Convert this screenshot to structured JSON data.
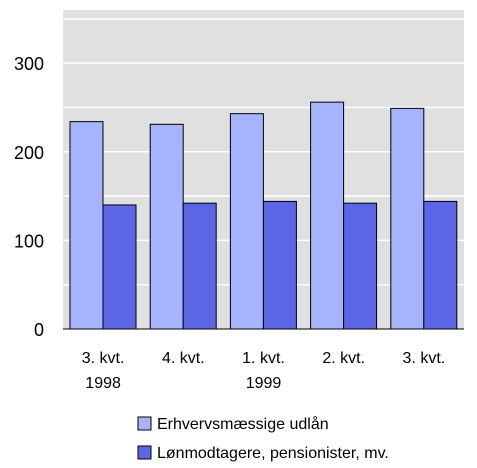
{
  "chart_data": {
    "type": "bar",
    "categories": [
      [
        "3. kvt.",
        "1998"
      ],
      [
        "4. kvt.",
        ""
      ],
      [
        "1. kvt.",
        "1999"
      ],
      [
        "2. kvt.",
        ""
      ],
      [
        "3. kvt.",
        ""
      ]
    ],
    "series": [
      {
        "name": "Erhvervsmæssige udlån",
        "color": "#a6b4ff",
        "values": [
          234,
          231,
          243,
          256,
          249
        ]
      },
      {
        "name": "Lønmodtagere, pensionister, mv.",
        "color": "#5a66e6",
        "values": [
          140,
          142,
          144,
          142,
          144
        ]
      }
    ],
    "yticks": [
      0,
      100,
      200,
      300
    ],
    "ylim": [
      0,
      360
    ],
    "grid": true,
    "plot_background": "#e0e0e0",
    "gridline_color": "#ffffff",
    "legend_position": "bottom",
    "title": "",
    "xlabel": "",
    "ylabel": ""
  }
}
